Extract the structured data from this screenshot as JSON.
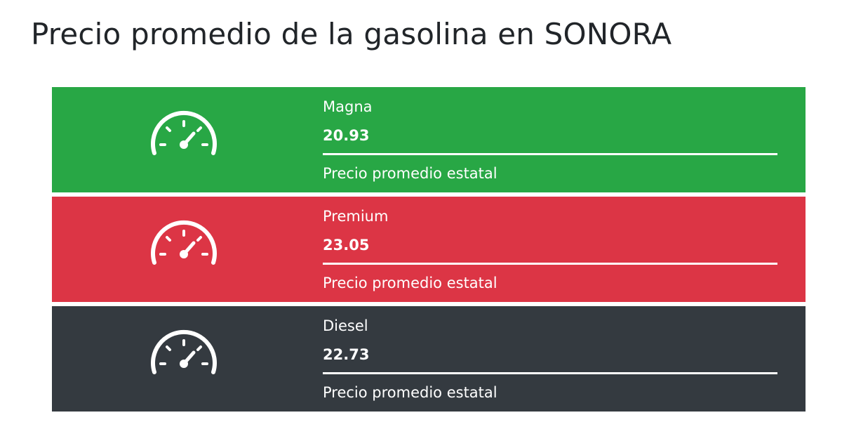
{
  "page": {
    "title": "Precio promedio de la gasolina en SONORA"
  },
  "cards": [
    {
      "name": "Magna",
      "price": "20.93",
      "description": "Precio promedio estatal",
      "icon": "speedometer-icon",
      "color": "#28a745",
      "bar_fraction": 1.0
    },
    {
      "name": "Premium",
      "price": "23.05",
      "description": "Precio promedio estatal",
      "icon": "speedometer-icon",
      "color": "#dc3545",
      "bar_fraction": 1.0
    },
    {
      "name": "Diesel",
      "price": "22.73",
      "description": "Precio promedio estatal",
      "icon": "speedometer-icon",
      "color": "#343a40",
      "bar_fraction": 1.0
    }
  ]
}
